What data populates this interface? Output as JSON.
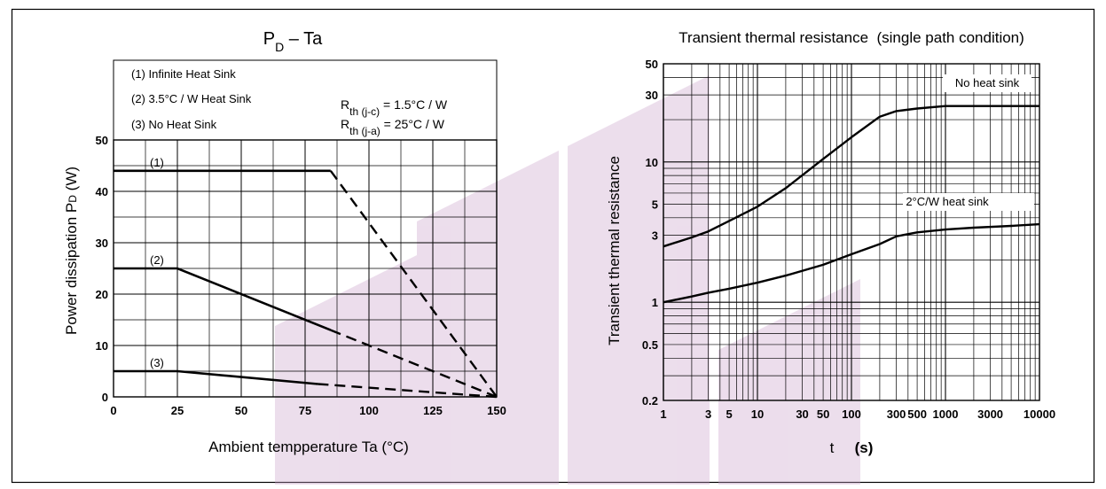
{
  "colors": {
    "background": "#ffffff",
    "grid": "#000000",
    "curve": "#000000",
    "watermark": "#c9a0c9"
  },
  "chart_data": [
    {
      "type": "line",
      "title": "PD – Ta",
      "title_main": "P",
      "title_sub": "D",
      "title_rest": " – Ta",
      "xlabel": "Ambient tempperature Ta (°C)",
      "ylabel_main": "Power dissipation P",
      "ylabel_sub": "D",
      "ylabel_unit": " (W)",
      "xlim": [
        0,
        150
      ],
      "ylim": [
        0,
        50
      ],
      "x_ticks": [
        0,
        25,
        50,
        75,
        100,
        125,
        150
      ],
      "x_tick_labels": [
        "0",
        "25",
        "50",
        "75",
        "100",
        "125",
        "150"
      ],
      "y_ticks": [
        0,
        10,
        20,
        30,
        40,
        50
      ],
      "y_tick_labels": [
        "0",
        "10",
        "20",
        "30",
        "40",
        "50"
      ],
      "grid": true,
      "legend": {
        "placement": "top-left",
        "items": [
          "(1) Infinite Heat Sink",
          "(2) 3.5°C / W Heat Sink",
          "(3) No Heat Sink"
        ]
      },
      "annotations": {
        "rth_jc": {
          "main": "R",
          "sub": "th (j-c)",
          "rest": " = 1.5°C / W"
        },
        "rth_ja": {
          "main": "R",
          "sub": "th (j-a)",
          "rest": " = 25°C / W"
        }
      },
      "series": [
        {
          "name": "(1)",
          "solid": [
            [
              0,
              44
            ],
            [
              85,
              44
            ]
          ],
          "dashed": [
            [
              85,
              44
            ],
            [
              150,
              0
            ]
          ]
        },
        {
          "name": "(2)",
          "solid": [
            [
              0,
              25
            ],
            [
              25,
              25
            ],
            [
              85,
              13
            ]
          ],
          "dashed": [
            [
              85,
              13
            ],
            [
              150,
              0
            ]
          ]
        },
        {
          "name": "(3)",
          "solid": [
            [
              0,
              5
            ],
            [
              25,
              5
            ],
            [
              80,
              2.5
            ]
          ],
          "dashed": [
            [
              80,
              2.5
            ],
            [
              150,
              0
            ]
          ]
        }
      ]
    },
    {
      "type": "line",
      "title": "Transient thermal resistance  (single path condition)",
      "xlabel_t": "t",
      "xlabel_s": "(s)",
      "ylabel": "Transient thermal resistance",
      "x_scale": "log",
      "y_scale": "log",
      "xlim": [
        1,
        10000
      ],
      "ylim": [
        0.2,
        50
      ],
      "x_ticks": [
        1,
        3,
        5,
        10,
        30,
        50,
        100,
        300,
        500,
        1000,
        3000,
        10000
      ],
      "x_tick_labels": [
        "1",
        "3",
        "5",
        "10",
        "30",
        "50",
        "100",
        "300",
        "500",
        "1000",
        "3000",
        "10000"
      ],
      "y_ticks": [
        0.2,
        0.5,
        1,
        3,
        5,
        10,
        30,
        50
      ],
      "y_tick_labels": [
        "0.2",
        "0.5",
        "1",
        "3",
        "5",
        "10",
        "30",
        "50"
      ],
      "grid": true,
      "series": [
        {
          "name": "No heat sink",
          "x": [
            1,
            2,
            3,
            5,
            10,
            20,
            50,
            100,
            200,
            300,
            500,
            1000,
            2000,
            5000,
            10000
          ],
          "y": [
            2.5,
            2.9,
            3.2,
            3.8,
            4.8,
            6.5,
            10.5,
            15,
            21,
            23,
            24,
            25,
            25,
            25,
            25
          ]
        },
        {
          "name": "2°C/W heat sink",
          "x": [
            1,
            2,
            3,
            5,
            10,
            20,
            50,
            100,
            200,
            300,
            500,
            1000,
            2000,
            5000,
            10000
          ],
          "y": [
            1.0,
            1.1,
            1.17,
            1.25,
            1.38,
            1.55,
            1.85,
            2.2,
            2.6,
            2.95,
            3.15,
            3.3,
            3.4,
            3.5,
            3.6
          ]
        }
      ]
    }
  ]
}
